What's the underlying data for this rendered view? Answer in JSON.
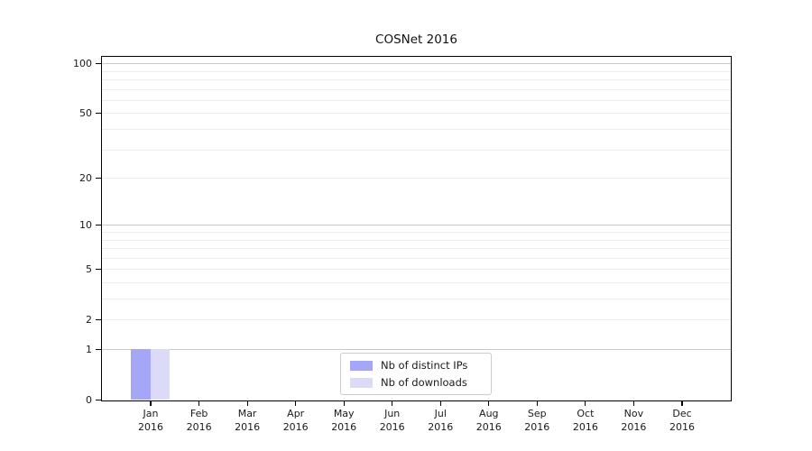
{
  "title": "COSNet 2016",
  "chart_data": {
    "type": "bar",
    "title": "COSNet 2016",
    "x_categories": [
      "Jan 2016",
      "Feb 2016",
      "Mar 2016",
      "Apr 2016",
      "May 2016",
      "Jun 2016",
      "Jul 2016",
      "Aug 2016",
      "Sep 2016",
      "Oct 2016",
      "Nov 2016",
      "Dec 2016"
    ],
    "series": [
      {
        "name": "Nb of distinct IPs",
        "color": "#a6a6f6",
        "values": [
          1,
          0,
          0,
          0,
          0,
          0,
          0,
          0,
          0,
          0,
          0,
          0
        ]
      },
      {
        "name": "Nb of downloads",
        "color": "#dbdbf9",
        "values": [
          1,
          0,
          0,
          0,
          0,
          0,
          0,
          0,
          0,
          0,
          0,
          0
        ]
      }
    ],
    "yscale": "log(1+y)",
    "ylim": [
      0,
      110
    ],
    "yticks": [
      0,
      1,
      2,
      5,
      10,
      20,
      50,
      100
    ],
    "major_gridlines": [
      1,
      10,
      100
    ],
    "minor_gridlines": [
      2,
      3,
      4,
      5,
      6,
      7,
      8,
      9,
      20,
      30,
      40,
      50,
      60,
      70,
      80,
      90
    ],
    "grid": "horizontal only",
    "legend_position": "inside bottom-center",
    "colors": {
      "major_grid": "#c9c9c9",
      "minor_grid": "#ededed",
      "axis": "#000000",
      "text": "#1a1a1a"
    }
  }
}
